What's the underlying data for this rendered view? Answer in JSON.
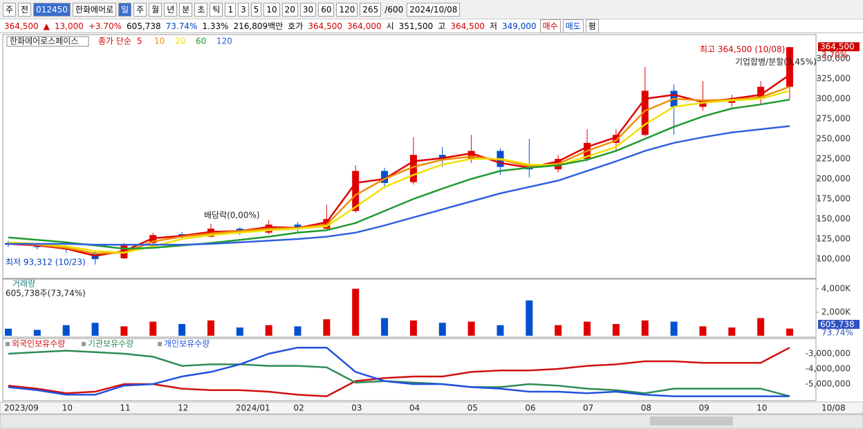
{
  "toolbar": {
    "period_type": "주",
    "scope": "전",
    "code": "012450",
    "name": "한화에어로",
    "intervals": [
      "일",
      "주",
      "월",
      "년",
      "분",
      "초",
      "틱"
    ],
    "ticks": [
      "1",
      "3",
      "5",
      "10",
      "20",
      "30",
      "60",
      "120"
    ],
    "count": "265",
    "max": "/600",
    "date": "2024/10/08"
  },
  "quote": {
    "price": "364,500",
    "arrow": "▲",
    "change": "13,000",
    "rate": "+3.70%",
    "volume": "605,738",
    "volume_ratio": "73.74%",
    "turnover": "1.33%",
    "amount": "216,809백만",
    "ask_label": "호가",
    "ask": "364,500",
    "bid": "364,000",
    "open_label": "시",
    "open": "351,500",
    "high_label": "고",
    "high": "364,500",
    "low_label": "저",
    "low": "349,000",
    "buy": "매수",
    "sell": "매도",
    "avg": "평"
  },
  "chart_data": [
    {
      "type": "candlestick",
      "title": "한화에어로스페이스",
      "ma_label": "종가 단순",
      "open": [
        120000,
        118000,
        115000,
        108000,
        101000,
        120000,
        131000,
        128000,
        138000,
        133000,
        143000,
        138000,
        160000,
        210000,
        196000,
        230000,
        225000,
        235000,
        215000,
        212000,
        225000,
        245000,
        255000,
        310000,
        290000,
        295000,
        300000,
        315000
      ],
      "high": [
        123000,
        120000,
        117000,
        110000,
        120000,
        133000,
        134000,
        144000,
        140000,
        149000,
        146000,
        168000,
        217000,
        214000,
        252000,
        240000,
        255000,
        238000,
        250000,
        230000,
        262000,
        262000,
        340000,
        318000,
        322000,
        305000,
        322000,
        364500
      ],
      "low": [
        115000,
        112000,
        108000,
        93312,
        100000,
        118000,
        125000,
        127000,
        130000,
        131000,
        134000,
        136000,
        158000,
        188000,
        193000,
        215000,
        220000,
        205000,
        202000,
        208000,
        222000,
        236000,
        253000,
        255000,
        285000,
        290000,
        292000,
        300000
      ],
      "close": [
        118000,
        115000,
        112000,
        100000,
        118000,
        130000,
        128000,
        138000,
        133000,
        143000,
        138000,
        150000,
        210000,
        195000,
        230000,
        225000,
        235000,
        215000,
        212000,
        225000,
        245000,
        255000,
        310000,
        290000,
        295000,
        300000,
        315000,
        364500
      ],
      "up_color": "#e00000",
      "down_color": "#0050d0",
      "series": [
        {
          "name": "5",
          "color": "#e00000",
          "values": [
            119000,
            117000,
            113000,
            104000,
            110000,
            126000,
            129000,
            134000,
            135000,
            140000,
            139000,
            146000,
            195000,
            200000,
            222000,
            226000,
            232000,
            220000,
            214000,
            222000,
            240000,
            252000,
            300000,
            305000,
            296000,
            300000,
            305000,
            330000
          ]
        },
        {
          "name": "10",
          "color": "#f08c00",
          "values": [
            120000,
            118000,
            114000,
            107000,
            108000,
            122000,
            128000,
            132000,
            135000,
            138000,
            139000,
            143000,
            180000,
            200000,
            215000,
            224000,
            228000,
            224000,
            216000,
            219000,
            235000,
            248000,
            285000,
            300000,
            298000,
            299000,
            302000,
            315000
          ]
        },
        {
          "name": "20",
          "color": "#f0e000",
          "values": [
            121000,
            119000,
            116000,
            110000,
            108000,
            116000,
            125000,
            130000,
            133000,
            136000,
            138000,
            141000,
            165000,
            190000,
            205000,
            218000,
            225000,
            225000,
            218000,
            217000,
            228000,
            240000,
            268000,
            290000,
            295000,
            298000,
            300000,
            310000
          ]
        },
        {
          "name": "60",
          "color": "#1e9a2e",
          "values": [
            127000,
            124000,
            121000,
            117000,
            113000,
            114000,
            117000,
            120000,
            124000,
            128000,
            133000,
            136000,
            145000,
            160000,
            175000,
            188000,
            200000,
            210000,
            214000,
            217000,
            224000,
            235000,
            250000,
            265000,
            278000,
            288000,
            293000,
            299000
          ]
        },
        {
          "name": "120",
          "color": "#3060e0",
          "values": [
            119000,
            119000,
            119000,
            118000,
            118000,
            118000,
            118000,
            119000,
            121000,
            123000,
            125000,
            128000,
            133000,
            142000,
            152000,
            162000,
            172000,
            182000,
            190000,
            198000,
            210000,
            222000,
            235000,
            245000,
            252000,
            258000,
            262000,
            266000
          ]
        }
      ],
      "ylim": [
        75900,
        380200
      ],
      "yticks": [
        {
          "value": 100000,
          "label": "100,000"
        },
        {
          "value": 125000,
          "label": "125,000"
        },
        {
          "value": 150000,
          "label": "150,000"
        },
        {
          "value": 175000,
          "label": "175,000"
        },
        {
          "value": 200000,
          "label": "200,000"
        },
        {
          "value": 225000,
          "label": "225,000"
        },
        {
          "value": 250000,
          "label": "250,000"
        },
        {
          "value": 275000,
          "label": "275,000"
        },
        {
          "value": 300000,
          "label": "300,000"
        },
        {
          "value": 325000,
          "label": "325,000"
        },
        {
          "value": 350000,
          "label": "350,000"
        }
      ],
      "annotations": {
        "dividend": "배당락(0,00%)",
        "low": "최저 93,312 (10/23)",
        "high": "최고 364,500 (10/08)",
        "merger": "기업합병/분할(3,45%)",
        "last_price": "364,500",
        "last_rate": "3.70%"
      }
    },
    {
      "type": "bar",
      "title": "거래량",
      "subtitle": "605,738주(73,74%)",
      "values": [
        600000,
        500000,
        900000,
        1100000,
        800000,
        1200000,
        1000000,
        1300000,
        700000,
        900000,
        800000,
        1400000,
        4000000,
        1500000,
        1300000,
        1100000,
        1200000,
        900000,
        3000000,
        900000,
        1200000,
        1000000,
        1300000,
        1200000,
        800000,
        700000,
        1500000,
        605738
      ],
      "ylim": [
        0,
        4700000
      ],
      "yticks": [
        {
          "value": 2000000,
          "label": "2,000K"
        },
        {
          "value": 4000000,
          "label": "4,000K"
        }
      ],
      "last_label": "605,738",
      "last_rate": "73.74%"
    },
    {
      "type": "line",
      "categories": [
        "2023/09",
        null,
        "10",
        null,
        "11",
        null,
        "12",
        null,
        "2024/01",
        null,
        "02",
        null,
        "03",
        null,
        "04",
        null,
        "05",
        null,
        "06",
        null,
        "07",
        null,
        "08",
        null,
        "09",
        null,
        "10",
        null
      ],
      "x_end_label": "10/08",
      "series": [
        {
          "name": "외국인보유수량",
          "color": "#d01010",
          "values": [
            -5100000,
            -5300000,
            -5600000,
            -5500000,
            -5000000,
            -5000000,
            -5300000,
            -5400000,
            -5400000,
            -5500000,
            -5700000,
            -5800000,
            -4800000,
            -4600000,
            -4500000,
            -4500000,
            -4200000,
            -4100000,
            -4100000,
            -4000000,
            -3800000,
            -3700000,
            -3500000,
            -3500000,
            -3600000,
            -3600000,
            -3600000,
            -2600000
          ]
        },
        {
          "name": "기관보유수량",
          "color": "#2e8b57",
          "values": [
            -3000000,
            -2900000,
            -2800000,
            -2900000,
            -3000000,
            -3200000,
            -3800000,
            -3700000,
            -3700000,
            -3800000,
            -3800000,
            -3900000,
            -4900000,
            -4800000,
            -4900000,
            -5000000,
            -5200000,
            -5200000,
            -5000000,
            -5100000,
            -5300000,
            -5400000,
            -5600000,
            -5300000,
            -5300000,
            -5300000,
            -5300000,
            -5800000
          ]
        },
        {
          "name": "개인보유수량",
          "color": "#2050e0",
          "values": [
            -5200000,
            -5400000,
            -5700000,
            -5700000,
            -5100000,
            -5000000,
            -4500000,
            -4200000,
            -3700000,
            -3000000,
            -2600000,
            -2600000,
            -4200000,
            -4800000,
            -5000000,
            -5000000,
            -5200000,
            -5300000,
            -5500000,
            -5500000,
            -5600000,
            -5500000,
            -5700000,
            -5800000,
            -5800000,
            -5800000,
            -5800000,
            -5800000
          ]
        }
      ],
      "ylim": [
        -6090000,
        -2000000
      ],
      "yticks": [
        {
          "value": -3000000,
          "label": "-3,000,000"
        },
        {
          "value": -4000000,
          "label": "-4,000,000"
        },
        {
          "value": -5000000,
          "label": "-5,000,000"
        }
      ]
    }
  ]
}
